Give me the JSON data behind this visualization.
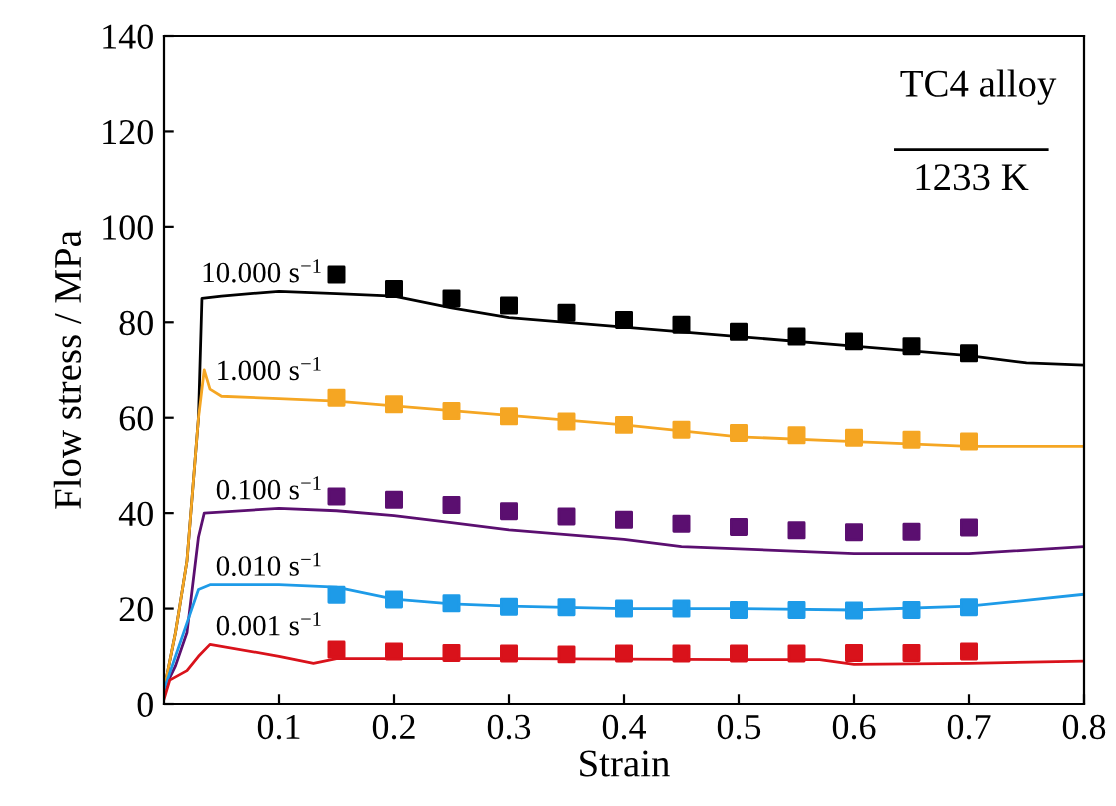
{
  "chart_data": {
    "type": "line",
    "xlabel": "Strain",
    "ylabel": "Flow stress / MPa",
    "annotations": [
      "TC4 alloy",
      "1233 K"
    ],
    "xlim": [
      0,
      0.8
    ],
    "xticks": [
      0.1,
      0.2,
      0.3,
      0.4,
      0.5,
      0.6,
      0.7,
      0.8
    ],
    "ylim": [
      0,
      140
    ],
    "yticks": [
      0,
      20,
      40,
      60,
      80,
      100,
      120,
      140
    ],
    "grid": false,
    "legend": false,
    "series": [
      {
        "name": "10.000 s$^{−1}$",
        "color": "#000000",
        "x": [
          0,
          0.01,
          0.02,
          0.03,
          0.033,
          0.05,
          0.1,
          0.15,
          0.2,
          0.25,
          0.3,
          0.4,
          0.5,
          0.6,
          0.7,
          0.75,
          0.8
        ],
        "values": [
          3,
          15,
          30,
          60,
          85,
          85.5,
          86.5,
          86,
          85.5,
          83,
          81,
          79,
          77,
          75,
          73,
          71.5,
          71
        ]
      },
      {
        "color": "#000000",
        "type": "scatter",
        "marker": "square",
        "x": [
          0.15,
          0.2,
          0.25,
          0.3,
          0.35,
          0.4,
          0.45,
          0.5,
          0.55,
          0.6,
          0.65,
          0.7
        ],
        "values": [
          90,
          87,
          85,
          83.5,
          82,
          80.5,
          79.5,
          78,
          77,
          76,
          75,
          73.5
        ]
      },
      {
        "name": "1.000 s$^{−1}$",
        "color": "#f5a623",
        "x": [
          0,
          0.01,
          0.02,
          0.03,
          0.035,
          0.04,
          0.05,
          0.1,
          0.15,
          0.2,
          0.3,
          0.4,
          0.5,
          0.6,
          0.7,
          0.8
        ],
        "values": [
          3,
          15,
          30,
          60,
          70,
          66,
          64.5,
          64,
          63.5,
          62.5,
          60.5,
          58.5,
          56,
          55,
          54,
          54
        ]
      },
      {
        "color": "#f5a623",
        "type": "scatter",
        "marker": "square",
        "x": [
          0.15,
          0.2,
          0.25,
          0.3,
          0.35,
          0.4,
          0.45,
          0.5,
          0.55,
          0.6,
          0.65,
          0.7
        ],
        "values": [
          64.2,
          62.8,
          61.4,
          60.3,
          59.2,
          58.5,
          57.5,
          56.8,
          56.3,
          55.8,
          55.4,
          55
        ]
      },
      {
        "name": "0.100 s$^{−1}$",
        "color": "#5b0f70",
        "x": [
          0,
          0.01,
          0.02,
          0.03,
          0.035,
          0.1,
          0.15,
          0.2,
          0.25,
          0.3,
          0.4,
          0.45,
          0.5,
          0.6,
          0.7,
          0.8
        ],
        "values": [
          3,
          8,
          15,
          35,
          40,
          41,
          40.5,
          39.5,
          38,
          36.5,
          34.5,
          33,
          32.5,
          31.5,
          31.5,
          33
        ]
      },
      {
        "color": "#5b0f70",
        "type": "scatter",
        "marker": "square",
        "x": [
          0.15,
          0.2,
          0.25,
          0.3,
          0.35,
          0.4,
          0.45,
          0.5,
          0.55,
          0.6,
          0.65,
          0.7
        ],
        "values": [
          43.5,
          42.8,
          41.7,
          40.4,
          39.3,
          38.6,
          37.8,
          37.1,
          36.4,
          36,
          36.1,
          37
        ]
      },
      {
        "name": "0.010 s$^{−1}$",
        "color": "#1e9be8",
        "x": [
          0,
          0.01,
          0.02,
          0.03,
          0.04,
          0.1,
          0.15,
          0.2,
          0.25,
          0.3,
          0.4,
          0.5,
          0.6,
          0.7,
          0.8
        ],
        "values": [
          3,
          10,
          17,
          24,
          25,
          25,
          24.5,
          22,
          21,
          20.5,
          20,
          20,
          19.7,
          20.5,
          23
        ]
      },
      {
        "color": "#1e9be8",
        "type": "scatter",
        "marker": "square",
        "x": [
          0.15,
          0.2,
          0.25,
          0.3,
          0.35,
          0.4,
          0.45,
          0.5,
          0.55,
          0.6,
          0.65,
          0.7
        ],
        "values": [
          22.9,
          21.9,
          21.1,
          20.4,
          20.3,
          20,
          20,
          19.7,
          19.7,
          19.6,
          19.7,
          20.3
        ]
      },
      {
        "name": "0.001 s$^{−1}$",
        "color": "#d9121b",
        "x": [
          0,
          0.005,
          0.02,
          0.03,
          0.04,
          0.1,
          0.13,
          0.15,
          0.3,
          0.5,
          0.57,
          0.6,
          0.7,
          0.8
        ],
        "values": [
          1,
          5,
          7,
          10,
          12.5,
          10,
          8.5,
          9.5,
          9.5,
          9.3,
          9.3,
          8.3,
          8.5,
          9
        ]
      },
      {
        "color": "#d9121b",
        "type": "scatter",
        "marker": "square",
        "x": [
          0.15,
          0.2,
          0.25,
          0.3,
          0.35,
          0.4,
          0.45,
          0.5,
          0.55,
          0.6,
          0.65,
          0.7
        ],
        "values": [
          11.4,
          11,
          10.7,
          10.6,
          10.4,
          10.6,
          10.6,
          10.6,
          10.6,
          10.7,
          10.7,
          11
        ]
      }
    ]
  }
}
